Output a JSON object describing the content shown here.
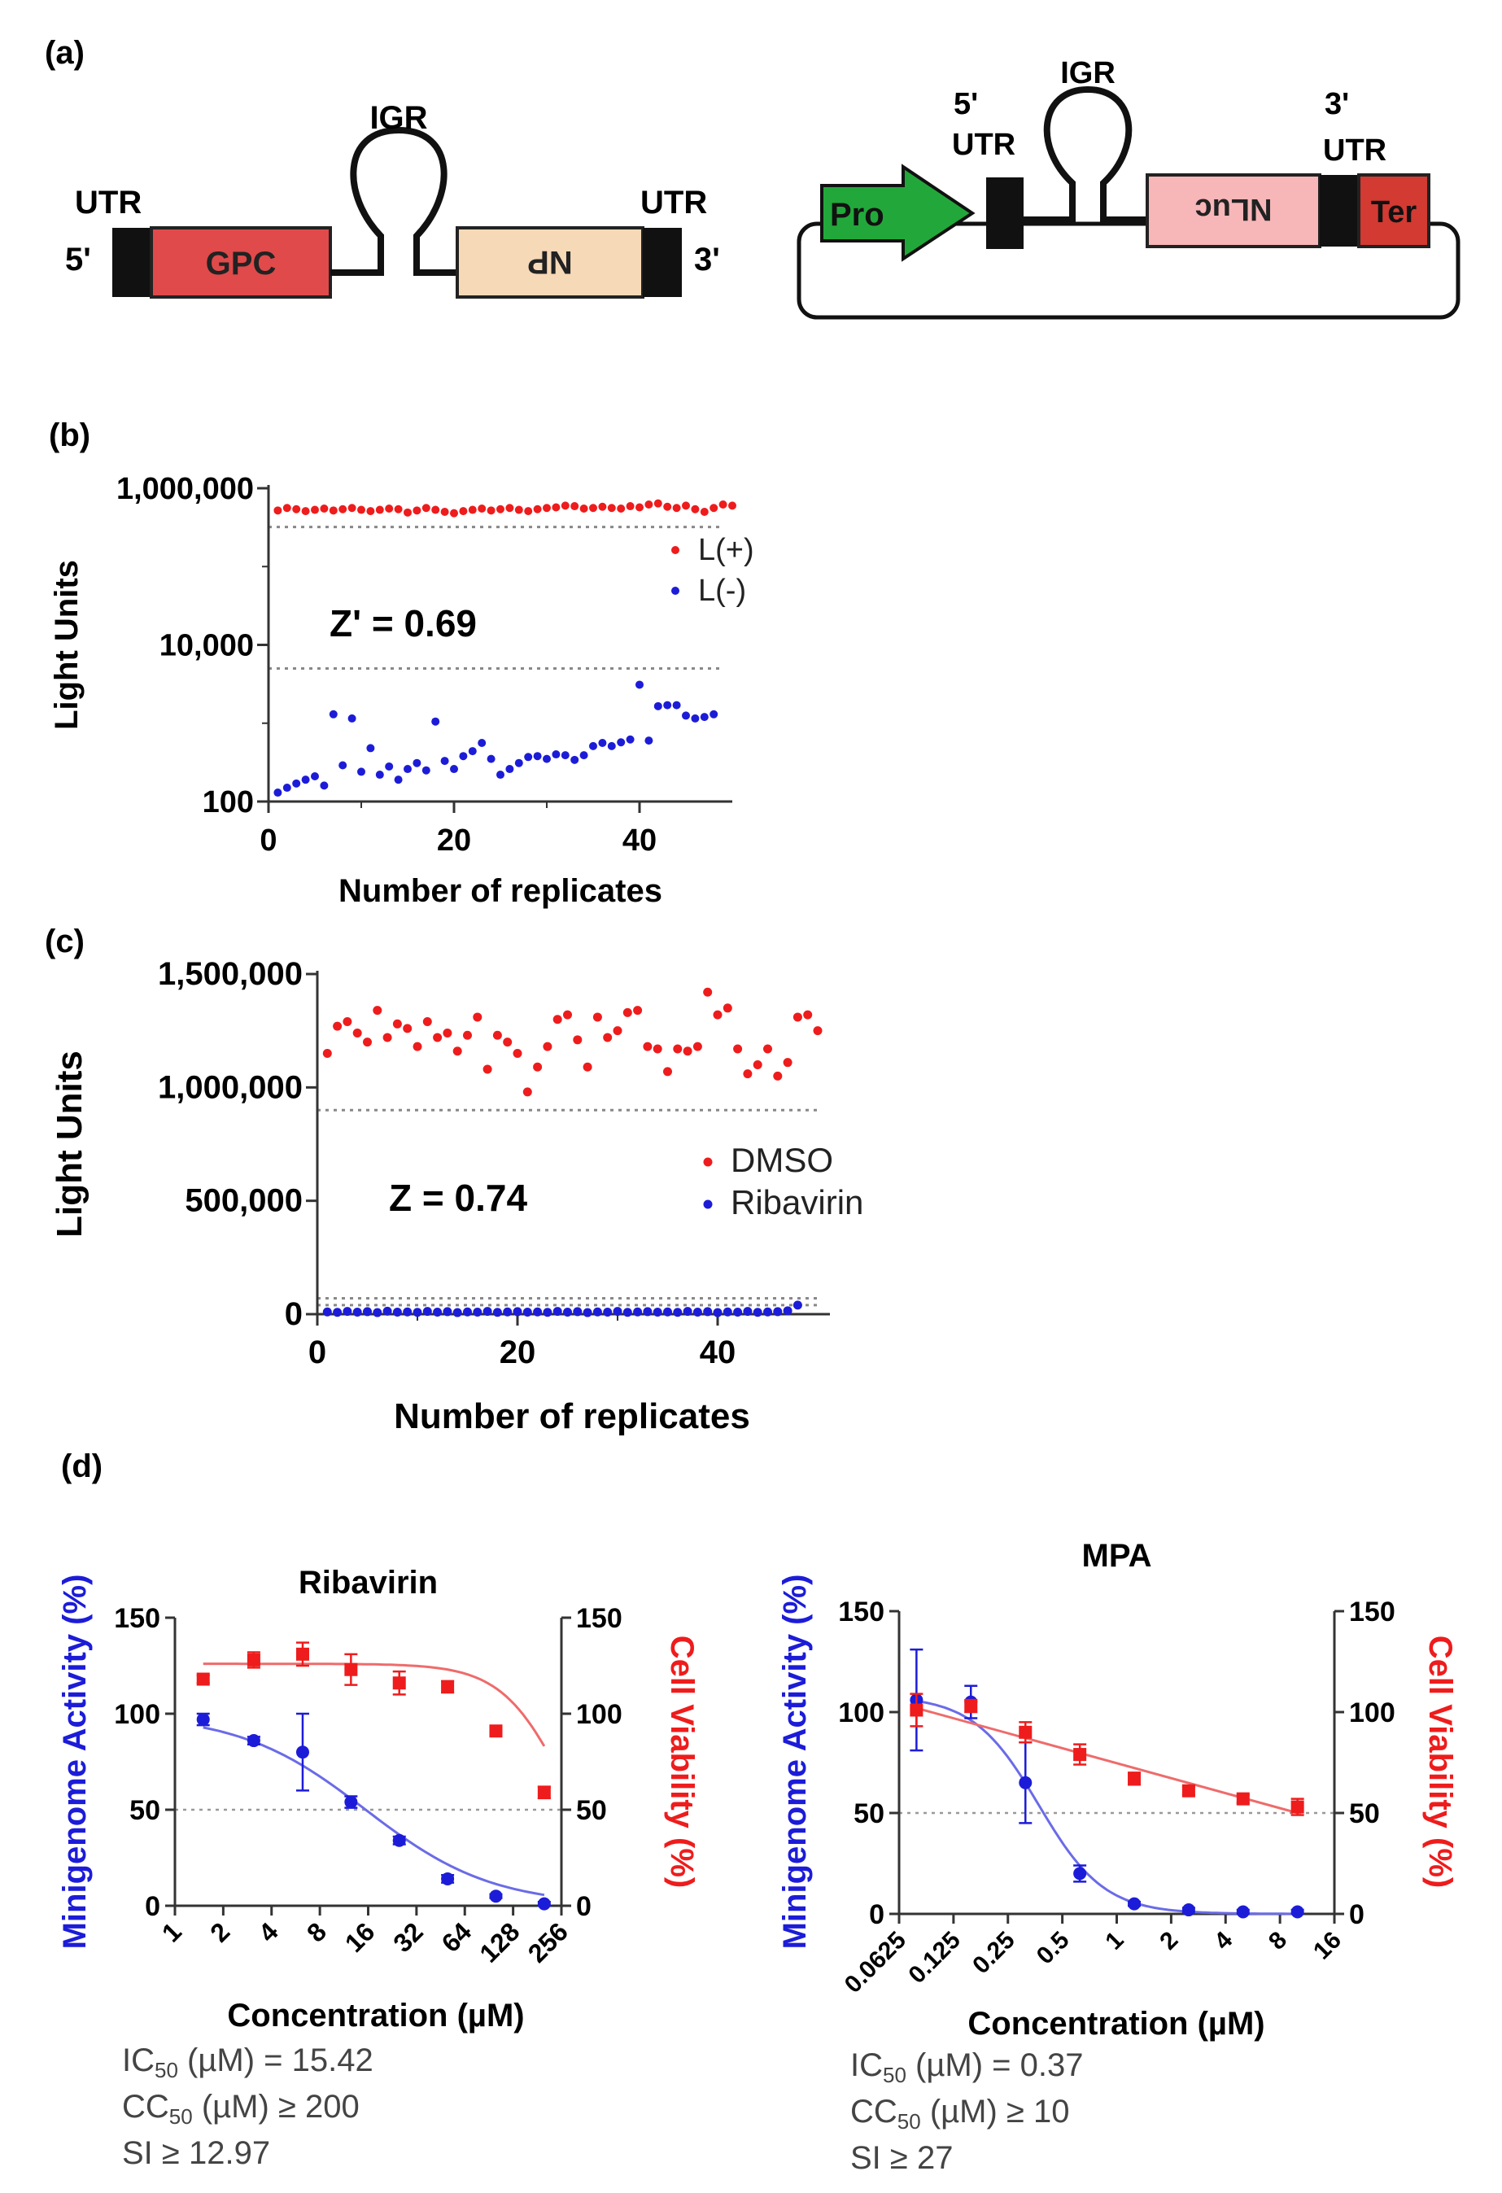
{
  "panels": {
    "a": "(a)",
    "b": "(b)",
    "c": "(c)",
    "d": "(d)"
  },
  "diagram_left": {
    "utr_left": "UTR",
    "five_prime": "5'",
    "gpc": "GPC",
    "igr": "IGR",
    "np": "NP",
    "utr_right": "UTR",
    "three_prime": "3'"
  },
  "diagram_right": {
    "pro": "Pro",
    "five_prime": "5'",
    "utr5": "UTR",
    "igr": "IGR",
    "nluc": "NLuc",
    "three_prime": "3'",
    "utr3": "UTR",
    "ter": "Ter"
  },
  "colors": {
    "red": "#ee1c1c",
    "blue": "#1c1cd8",
    "gpc": "#e04a4a",
    "np": "#f6d9b7",
    "nluc": "#f7b6b8",
    "ter": "#d23a32",
    "pro": "#22a83a",
    "fit_red": "#ef6b6b",
    "fit_blue": "#6b6be8"
  },
  "chart_data": [
    {
      "id": "b",
      "type": "scatter",
      "yscale": "log",
      "ylabel": "Light Units",
      "xlabel": "Number of replicates",
      "ylim": [
        100,
        1000000
      ],
      "yticks": [
        "1,000,000",
        "10,000",
        "100"
      ],
      "xlim": [
        0,
        50
      ],
      "xticks": [
        "0",
        "20",
        "40"
      ],
      "annotation": "Z' = 0.69",
      "threshold_lines": [
        320000,
        5000
      ],
      "legend": [
        {
          "name": "L(+)",
          "color": "#ee1c1c"
        },
        {
          "name": "L(-)",
          "color": "#1c1cd8"
        }
      ],
      "series": [
        {
          "name": "L(+)",
          "color": "#ee1c1c",
          "values": [
            520000,
            560000,
            540000,
            510000,
            530000,
            550000,
            520000,
            540000,
            560000,
            530000,
            510000,
            530000,
            550000,
            540000,
            490000,
            520000,
            560000,
            530000,
            500000,
            480000,
            510000,
            530000,
            550000,
            520000,
            540000,
            560000,
            530000,
            510000,
            540000,
            560000,
            570000,
            600000,
            590000,
            550000,
            560000,
            580000,
            560000,
            550000,
            590000,
            570000,
            620000,
            640000,
            580000,
            560000,
            600000,
            540000,
            500000,
            560000,
            620000,
            600000
          ]
        },
        {
          "name": "L(-)",
          "color": "#1c1cd8",
          "values": [
            130,
            150,
            170,
            190,
            210,
            160,
            1300,
            290,
            1150,
            240,
            480,
            220,
            280,
            190,
            260,
            310,
            250,
            1050,
            330,
            260,
            380,
            440,
            560,
            350,
            220,
            260,
            310,
            370,
            380,
            350,
            400,
            390,
            340,
            390,
            510,
            560,
            510,
            570,
            620,
            3100,
            600,
            1650,
            1700,
            1700,
            1250,
            1150,
            1200,
            1300
          ]
        }
      ]
    },
    {
      "id": "c",
      "type": "scatter",
      "ylabel": "Light Units",
      "xlabel": "Number of replicates",
      "ylim": [
        0,
        1500000
      ],
      "yticks": [
        "1,500,000",
        "1,000,000",
        "500,000",
        "0"
      ],
      "xlim": [
        0,
        50
      ],
      "xticks": [
        "0",
        "20",
        "40"
      ],
      "annotation": "Z = 0.74",
      "threshold_lines": [
        900000,
        70000,
        40000
      ],
      "legend": [
        {
          "name": "DMSO",
          "color": "#ee1c1c"
        },
        {
          "name": "Ribavirin",
          "color": "#1c1cd8"
        }
      ],
      "series": [
        {
          "name": "DMSO",
          "color": "#ee1c1c",
          "values": [
            1150000,
            1270000,
            1290000,
            1240000,
            1200000,
            1340000,
            1220000,
            1280000,
            1260000,
            1180000,
            1290000,
            1220000,
            1240000,
            1160000,
            1230000,
            1310000,
            1080000,
            1230000,
            1200000,
            1150000,
            980000,
            1090000,
            1180000,
            1300000,
            1320000,
            1210000,
            1090000,
            1310000,
            1220000,
            1250000,
            1330000,
            1340000,
            1180000,
            1170000,
            1070000,
            1170000,
            1160000,
            1180000,
            1420000,
            1320000,
            1350000,
            1170000,
            1060000,
            1100000,
            1170000,
            1050000,
            1110000,
            1310000,
            1320000,
            1250000
          ]
        },
        {
          "name": "Ribavirin",
          "color": "#1c1cd8",
          "values": [
            10000,
            8000,
            12000,
            9000,
            11000,
            7000,
            13000,
            9000,
            10000,
            8000,
            12000,
            9000,
            11000,
            7000,
            10000,
            9000,
            12000,
            8000,
            10000,
            11000,
            9000,
            10000,
            8000,
            12000,
            9000,
            11000,
            7000,
            10000,
            9000,
            12000,
            8000,
            10000,
            11000,
            9000,
            10000,
            8000,
            12000,
            9000,
            11000,
            7000,
            10000,
            9000,
            12000,
            8000,
            10000,
            11000,
            15000,
            40000
          ]
        }
      ]
    },
    {
      "id": "d1",
      "type": "dose-response",
      "title": "Ribavirin",
      "xscale": "log2",
      "xticks": [
        "1",
        "2",
        "4",
        "8",
        "16",
        "32",
        "64",
        "128",
        "256"
      ],
      "xtick_values": [
        1,
        2,
        4,
        8,
        16,
        32,
        64,
        128,
        256
      ],
      "xlabel": "Concentration (µM)",
      "ylabel_left": "Minigenome Activity (%)",
      "ylabel_right": "Cell Viability (%)",
      "ylim": [
        0,
        150
      ],
      "yticks": [
        "0",
        "50",
        "100",
        "150"
      ],
      "ref_line": 50,
      "series": [
        {
          "name": "Minigenome Activity",
          "color": "#1c1cd8",
          "marker": "circle",
          "x": [
            1.5,
            3.1,
            6.25,
            12.5,
            25,
            50,
            100,
            200
          ],
          "y": [
            97,
            86,
            80,
            54,
            34,
            14,
            5,
            1
          ],
          "err": [
            3,
            2,
            20,
            3,
            2,
            2,
            1,
            1
          ]
        },
        {
          "name": "Cell Viability",
          "color": "#ee1c1c",
          "marker": "square",
          "x": [
            1.5,
            3.1,
            6.25,
            12.5,
            25,
            50,
            100,
            200
          ],
          "y": [
            118,
            128,
            131,
            123,
            116,
            114,
            91,
            59
          ],
          "err": [
            2,
            4,
            6,
            8,
            6,
            3,
            2,
            3
          ]
        }
      ],
      "fits": [
        {
          "name": "Minigenome fit",
          "color": "#6b6be8",
          "top": 100,
          "bottom": 0,
          "ic50": 15.42,
          "hill": 1.1
        },
        {
          "name": "Viability fit",
          "color": "#ef6b6b",
          "top": 126,
          "bottom": 0,
          "ic50": 270,
          "hill": 2.2
        }
      ],
      "stats": {
        "ic50_label": "IC",
        "ic50_sub": "50",
        "ic50_rest": " (µM) = 15.42",
        "cc50_label": "CC",
        "cc50_sub": "50",
        "cc50_rest": " (µM) ≥ 200",
        "si": "SI ≥ 12.97"
      }
    },
    {
      "id": "d2",
      "type": "dose-response",
      "title": "MPA",
      "xscale": "log2",
      "xticks": [
        "0.0625",
        "0.125",
        "0.25",
        "0.5",
        "1",
        "2",
        "4",
        "8",
        "16"
      ],
      "xtick_values": [
        0.0625,
        0.125,
        0.25,
        0.5,
        1,
        2,
        4,
        8,
        16
      ],
      "xlabel": "Concentration (µM)",
      "ylabel_left": "Minigenome Activity (%)",
      "ylabel_right": "Cell Viability (%)",
      "ylim": [
        0,
        150
      ],
      "yticks": [
        "0",
        "50",
        "100",
        "150"
      ],
      "ref_line": 50,
      "series": [
        {
          "name": "Minigenome Activity",
          "color": "#1c1cd8",
          "marker": "circle",
          "x": [
            0.078,
            0.156,
            0.3125,
            0.625,
            1.25,
            2.5,
            5,
            10
          ],
          "y": [
            106,
            105,
            65,
            20,
            5,
            2,
            1,
            1
          ],
          "err": [
            25,
            8,
            20,
            4,
            1,
            1,
            1,
            1
          ]
        },
        {
          "name": "Cell Viability",
          "color": "#ee1c1c",
          "marker": "square",
          "x": [
            0.078,
            0.156,
            0.3125,
            0.625,
            1.25,
            2.5,
            5,
            10
          ],
          "y": [
            101,
            103,
            90,
            79,
            67,
            61,
            57,
            53
          ],
          "err": [
            8,
            3,
            5,
            5,
            3,
            2,
            2,
            4
          ]
        }
      ],
      "fits": [
        {
          "name": "Minigenome fit",
          "color": "#6b6be8",
          "top": 108,
          "bottom": 0,
          "ic50": 0.37,
          "hill": 2.4
        },
        {
          "name": "Viability line",
          "color": "#ef6b6b",
          "linear_log": true,
          "y_start": 102,
          "y_end": 50,
          "x_start": 0.078,
          "x_end": 10
        }
      ],
      "stats": {
        "ic50_label": "IC",
        "ic50_sub": "50",
        "ic50_rest": " (µM) = 0.37",
        "cc50_label": "CC",
        "cc50_sub": "50",
        "cc50_rest": " (µM) ≥ 10",
        "si": "SI ≥ 27"
      }
    }
  ]
}
